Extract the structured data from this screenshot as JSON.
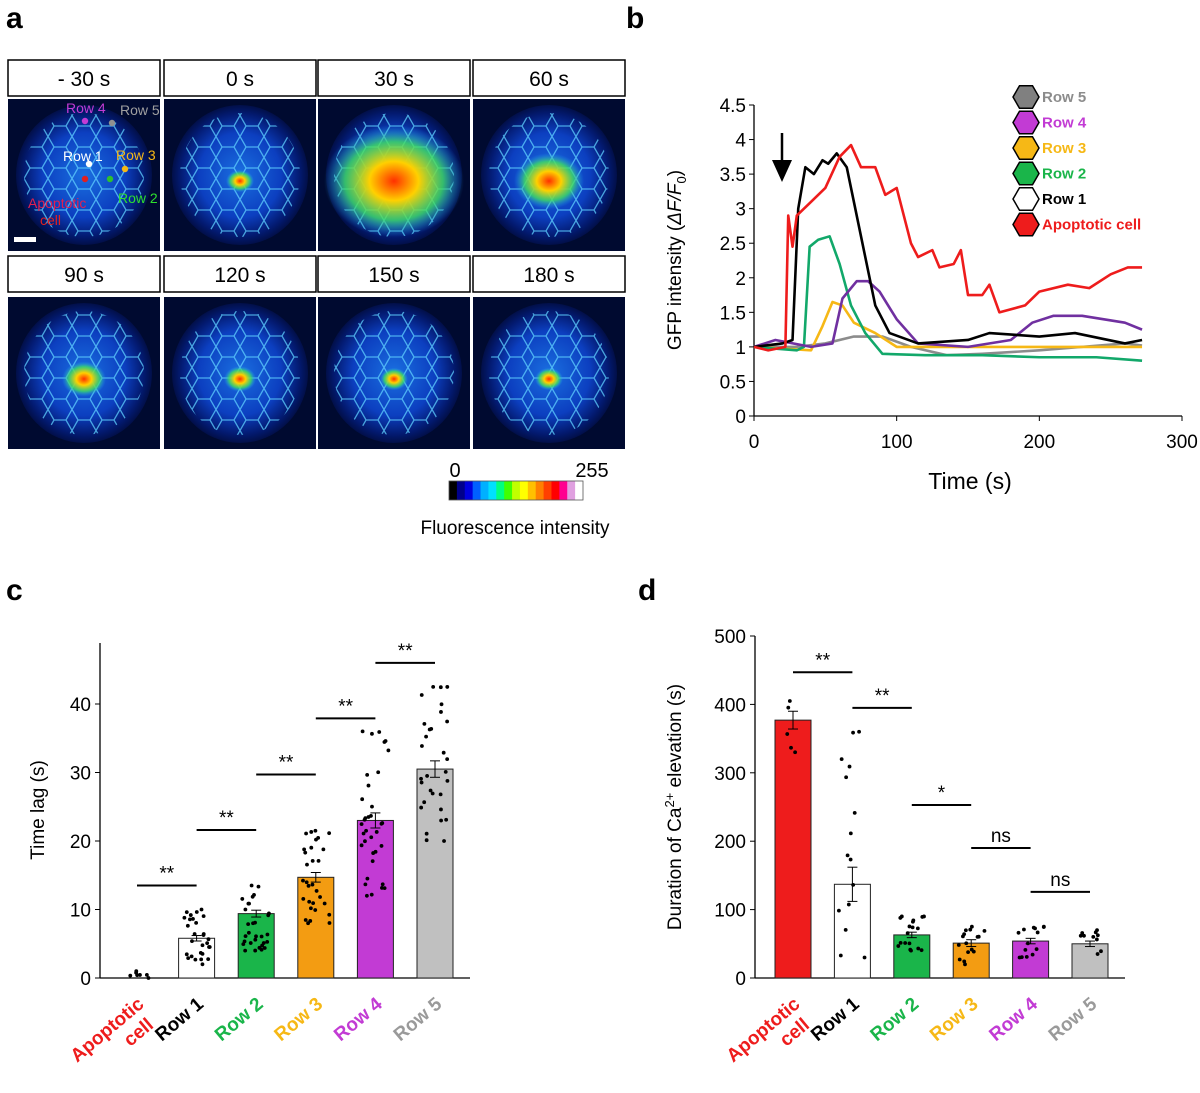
{
  "panel_labels": {
    "a": "a",
    "b": "b",
    "c": "c",
    "d": "d"
  },
  "panel_a": {
    "time_headers": [
      "- 30 s",
      "0 s",
      "30 s",
      "60 s",
      "90 s",
      "120 s",
      "150 s",
      "180 s"
    ],
    "annotations": {
      "row4": "Row 4",
      "row5": "Row 5",
      "row1": "Row 1",
      "row3": "Row 3",
      "row2": "Row 2",
      "apoptotic_1": "Apoptotic",
      "apoptotic_2": "cell"
    },
    "colorbar": {
      "min_label": "0",
      "max_label": "255",
      "title": "Fluorescence intensity",
      "colors": [
        "#000000",
        "#00008b",
        "#0000e0",
        "#0060ff",
        "#00b0ff",
        "#00e0ff",
        "#00ff80",
        "#40ff00",
        "#c0ff00",
        "#ffff00",
        "#ffc000",
        "#ff8000",
        "#ff4000",
        "#ff0000",
        "#ff0090",
        "#e0a0e0",
        "#ffffff"
      ]
    }
  },
  "colors": {
    "apoptotic": "#ee1c1c",
    "row1": "#000000",
    "row2": "#1ab54a",
    "row3": "#f6b816",
    "row4": "#c23bd4",
    "row5": "#8c8c8c",
    "row4_line": "#7030a0",
    "row2_line": "#12a86a"
  },
  "chart_data": [
    {
      "panel": "b",
      "type": "line",
      "xlabel": "Time (s)",
      "ylabel_parts": [
        "GFP intensity (",
        "ΔF/F",
        "0",
        ")"
      ],
      "xlim": [
        0,
        300
      ],
      "ylim": [
        0,
        4.5
      ],
      "xticks": [
        "0",
        "100",
        "200",
        "300"
      ],
      "yticks": [
        "0",
        "0.5",
        "1",
        "1.5",
        "2",
        "2.5",
        "3",
        "3.5",
        "4",
        "4.5"
      ],
      "annotation": "arrow at t≈20 s",
      "legend": [
        "Row 5",
        "Row 4",
        "Row 3",
        "Row 2",
        "Row 1",
        "Apoptotic cell"
      ],
      "legend_placement": "top-right",
      "series": [
        {
          "name": "Apoptotic cell",
          "key": "apoptotic",
          "points": [
            [
              0,
              1
            ],
            [
              10,
              0.95
            ],
            [
              22,
              1
            ],
            [
              24,
              2.9
            ],
            [
              27,
              2.45
            ],
            [
              30,
              2.9
            ],
            [
              40,
              3.1
            ],
            [
              50,
              3.3
            ],
            [
              60,
              3.75
            ],
            [
              68,
              3.92
            ],
            [
              75,
              3.6
            ],
            [
              85,
              3.6
            ],
            [
              92,
              3.2
            ],
            [
              100,
              3.3
            ],
            [
              110,
              2.5
            ],
            [
              115,
              2.3
            ],
            [
              125,
              2.4
            ],
            [
              130,
              2.15
            ],
            [
              140,
              2.2
            ],
            [
              145,
              2.4
            ],
            [
              150,
              1.75
            ],
            [
              160,
              1.75
            ],
            [
              165,
              1.9
            ],
            [
              172,
              1.5
            ],
            [
              190,
              1.6
            ],
            [
              200,
              1.8
            ],
            [
              220,
              1.9
            ],
            [
              235,
              1.85
            ],
            [
              250,
              2.05
            ],
            [
              262,
              2.15
            ],
            [
              272,
              2.15
            ]
          ]
        },
        {
          "name": "Row 1",
          "key": "row1",
          "points": [
            [
              0,
              1
            ],
            [
              20,
              1.05
            ],
            [
              27,
              1.1
            ],
            [
              31,
              3.0
            ],
            [
              36,
              3.6
            ],
            [
              42,
              3.5
            ],
            [
              48,
              3.7
            ],
            [
              52,
              3.65
            ],
            [
              58,
              3.8
            ],
            [
              65,
              3.6
            ],
            [
              75,
              2.6
            ],
            [
              85,
              1.6
            ],
            [
              95,
              1.2
            ],
            [
              115,
              1.05
            ],
            [
              150,
              1.1
            ],
            [
              165,
              1.2
            ],
            [
              200,
              1.15
            ],
            [
              225,
              1.2
            ],
            [
              260,
              1.05
            ],
            [
              272,
              1.1
            ]
          ]
        },
        {
          "name": "Row 2",
          "key": "row2_line",
          "points": [
            [
              0,
              1
            ],
            [
              30,
              0.95
            ],
            [
              35,
              1.0
            ],
            [
              39,
              2.45
            ],
            [
              45,
              2.55
            ],
            [
              53,
              2.6
            ],
            [
              60,
              2.2
            ],
            [
              68,
              1.6
            ],
            [
              78,
              1.2
            ],
            [
              90,
              0.9
            ],
            [
              120,
              0.88
            ],
            [
              160,
              0.88
            ],
            [
              200,
              0.85
            ],
            [
              240,
              0.85
            ],
            [
              272,
              0.8
            ]
          ]
        },
        {
          "name": "Row 3",
          "key": "row3",
          "points": [
            [
              0,
              1
            ],
            [
              40,
              0.95
            ],
            [
              48,
              1.3
            ],
            [
              55,
              1.65
            ],
            [
              62,
              1.6
            ],
            [
              70,
              1.35
            ],
            [
              85,
              1.2
            ],
            [
              100,
              1.0
            ],
            [
              150,
              1.0
            ],
            [
              200,
              1.0
            ],
            [
              272,
              1.0
            ]
          ]
        },
        {
          "name": "Row 4",
          "key": "row4_line",
          "points": [
            [
              0,
              1
            ],
            [
              15,
              1.1
            ],
            [
              40,
              1.0
            ],
            [
              55,
              1.05
            ],
            [
              62,
              1.7
            ],
            [
              72,
              1.95
            ],
            [
              80,
              1.95
            ],
            [
              88,
              1.8
            ],
            [
              100,
              1.4
            ],
            [
              115,
              1.05
            ],
            [
              150,
              1.0
            ],
            [
              180,
              1.1
            ],
            [
              195,
              1.35
            ],
            [
              210,
              1.45
            ],
            [
              230,
              1.45
            ],
            [
              260,
              1.35
            ],
            [
              272,
              1.25
            ]
          ]
        },
        {
          "name": "Row 5",
          "key": "row5",
          "points": [
            [
              0,
              1
            ],
            [
              30,
              1.0
            ],
            [
              50,
              1.05
            ],
            [
              70,
              1.15
            ],
            [
              90,
              1.15
            ],
            [
              110,
              1.0
            ],
            [
              135,
              0.88
            ],
            [
              160,
              0.9
            ],
            [
              200,
              0.95
            ],
            [
              230,
              1.0
            ],
            [
              260,
              1.05
            ],
            [
              272,
              1.02
            ]
          ]
        }
      ]
    },
    {
      "panel": "c",
      "type": "bar",
      "ylabel": "Time lag (s)",
      "ylim": [
        0,
        45
      ],
      "yticks": [
        "0",
        "10",
        "20",
        "30",
        "40"
      ],
      "categories": [
        "Apoptotic cell",
        "Row 1",
        "Row 2",
        "Row 3",
        "Row 4",
        "Row 5"
      ],
      "category_lines": [
        [
          "Apoptotic",
          "cell"
        ],
        [
          "Row 1"
        ],
        [
          "Row 2"
        ],
        [
          "Row 3"
        ],
        [
          "Row 4"
        ],
        [
          "Row 5"
        ]
      ],
      "values": [
        0.5,
        5.8,
        9.4,
        14.7,
        23.0,
        30.5
      ],
      "sem": [
        0,
        0.4,
        0.5,
        0.7,
        1.1,
        1.2
      ],
      "points_n": [
        7,
        28,
        30,
        30,
        35,
        30
      ],
      "points_range": [
        [
          0,
          1
        ],
        [
          2,
          10
        ],
        [
          4,
          13.5
        ],
        [
          8,
          21.5
        ],
        [
          12,
          36
        ],
        [
          20,
          42.5
        ]
      ],
      "show_bar": [
        false,
        true,
        true,
        true,
        true,
        true
      ],
      "significance": [
        {
          "from": 0,
          "to": 1,
          "label": "**",
          "y": 13.5
        },
        {
          "from": 1,
          "to": 2,
          "label": "**",
          "y": 21.6
        },
        {
          "from": 2,
          "to": 3,
          "label": "**",
          "y": 29.7
        },
        {
          "from": 3,
          "to": 4,
          "label": "**",
          "y": 37.9
        },
        {
          "from": 4,
          "to": 5,
          "label": "**",
          "y": 46.0
        }
      ]
    },
    {
      "panel": "d",
      "type": "bar",
      "ylabel_parts": [
        "Duration of Ca",
        "2+",
        " elevation (s)"
      ],
      "ylim": [
        0,
        500
      ],
      "yticks": [
        "0",
        "100",
        "200",
        "300",
        "400",
        "500"
      ],
      "categories": [
        "Apoptotic cell",
        "Row 1",
        "Row 2",
        "Row 3",
        "Row 4",
        "Row 5"
      ],
      "category_lines": [
        [
          "Apoptotic",
          "cell"
        ],
        [
          "Row 1"
        ],
        [
          "Row 2"
        ],
        [
          "Row 3"
        ],
        [
          "Row 4"
        ],
        [
          "Row 5"
        ]
      ],
      "values": [
        377,
        137,
        63,
        51,
        54,
        50
      ],
      "sem": [
        13,
        25,
        4,
        5,
        4,
        4
      ],
      "points_n": [
        5,
        15,
        18,
        16,
        14,
        10
      ],
      "points_range": [
        [
          330,
          405
        ],
        [
          30,
          360
        ],
        [
          40,
          90
        ],
        [
          20,
          75
        ],
        [
          30,
          75
        ],
        [
          35,
          70
        ]
      ],
      "show_bar": [
        true,
        true,
        true,
        true,
        true,
        true
      ],
      "significance": [
        {
          "from": 0,
          "to": 1,
          "label": "**",
          "y": 447
        },
        {
          "from": 1,
          "to": 2,
          "label": "**",
          "y": 395
        },
        {
          "from": 2,
          "to": 3,
          "label": "*",
          "y": 253
        },
        {
          "from": 3,
          "to": 4,
          "label": "ns",
          "y": 190
        },
        {
          "from": 4,
          "to": 5,
          "label": "ns",
          "y": 126
        }
      ]
    }
  ]
}
